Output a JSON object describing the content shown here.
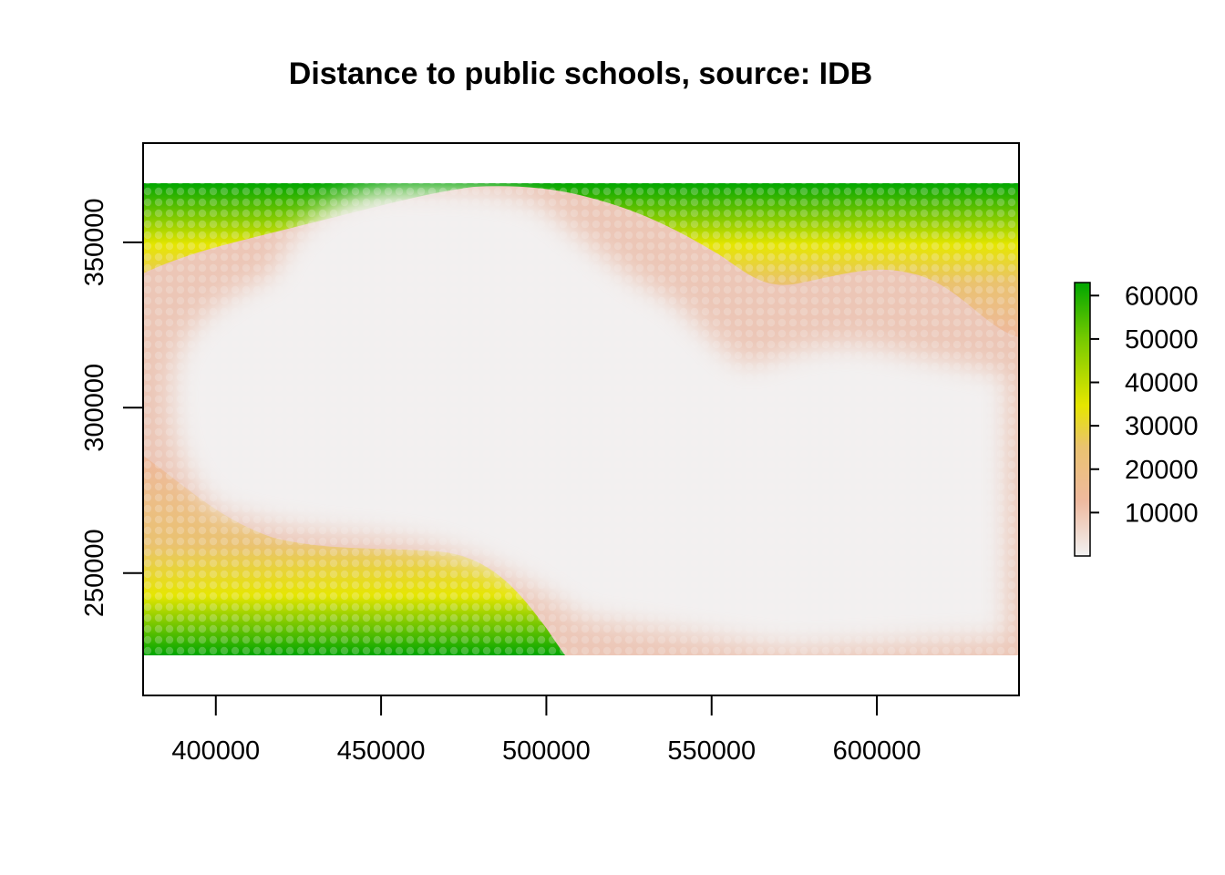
{
  "chart_data": {
    "type": "heatmap",
    "title": "Distance to public schools, source: IDB",
    "xlabel": "",
    "ylabel": "",
    "xlim": [
      378000,
      643000
    ],
    "ylim": [
      213000,
      380000
    ],
    "raster_extent": {
      "x": [
        378000,
        643000
      ],
      "y": [
        225000,
        368000
      ]
    },
    "x_ticks": [
      400000,
      450000,
      500000,
      550000,
      600000
    ],
    "x_tick_labels": [
      "400000",
      "450000",
      "500000",
      "550000",
      "600000"
    ],
    "y_ticks": [
      250000,
      300000,
      350000
    ],
    "y_tick_labels": [
      "250000",
      "300000",
      "350000"
    ],
    "legend": {
      "placement": "right",
      "min": 0,
      "max": 63000,
      "ticks": [
        10000,
        20000,
        30000,
        40000,
        50000,
        60000
      ],
      "tick_labels": [
        "10000",
        "20000",
        "30000",
        "40000",
        "50000",
        "60000"
      ]
    },
    "colormap": [
      "#f2f2f2",
      "#eeb99f",
      "#eac26f",
      "#e6e600",
      "#73c900",
      "#00a600"
    ],
    "grid": false
  }
}
